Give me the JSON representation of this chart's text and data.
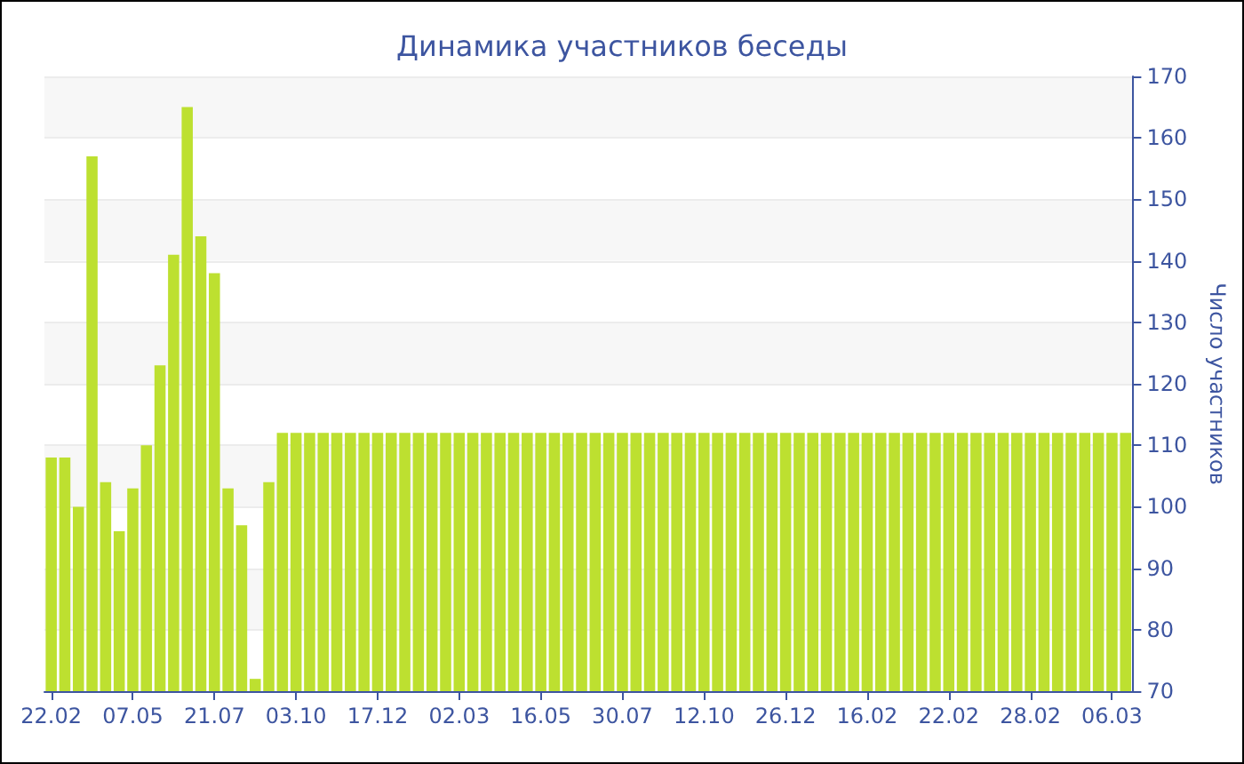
{
  "chart_data": {
    "type": "bar",
    "title": "Динамика участников беседы",
    "ylabel": "Число участников",
    "categories": [
      "22.02",
      null,
      null,
      null,
      null,
      null,
      "07.05",
      null,
      null,
      null,
      null,
      null,
      "21.07",
      null,
      null,
      null,
      null,
      null,
      "03.10",
      null,
      null,
      null,
      null,
      null,
      "17.12",
      null,
      null,
      null,
      null,
      null,
      "02.03",
      null,
      null,
      null,
      null,
      null,
      "16.05",
      null,
      null,
      null,
      null,
      null,
      "30.07",
      null,
      null,
      null,
      null,
      null,
      "12.10",
      null,
      null,
      null,
      null,
      null,
      "26.12",
      null,
      null,
      null,
      null,
      null,
      "16.02",
      null,
      null,
      null,
      null,
      null,
      "22.02",
      null,
      null,
      null,
      null,
      null,
      "28.02",
      null,
      null,
      null,
      null,
      null,
      "06.03",
      null
    ],
    "values": [
      108,
      108,
      100,
      157,
      104,
      96,
      103,
      110,
      123,
      141,
      165,
      144,
      138,
      103,
      97,
      72,
      104,
      112,
      112,
      112,
      112,
      112,
      112,
      112,
      112,
      112,
      112,
      112,
      112,
      112,
      112,
      112,
      112,
      112,
      112,
      112,
      112,
      112,
      112,
      112,
      112,
      112,
      112,
      112,
      112,
      112,
      112,
      112,
      112,
      112,
      112,
      112,
      112,
      112,
      112,
      112,
      112,
      112,
      112,
      112,
      112,
      112,
      112,
      112,
      112,
      112,
      112,
      112,
      112,
      112,
      112,
      112,
      112,
      112,
      112,
      112,
      112,
      112,
      112,
      112
    ],
    "color": "#bde030",
    "ylim": [
      70,
      170
    ],
    "yticks": [
      70,
      80,
      90,
      100,
      110,
      120,
      130,
      140,
      150,
      160,
      170
    ],
    "grid": "y"
  }
}
